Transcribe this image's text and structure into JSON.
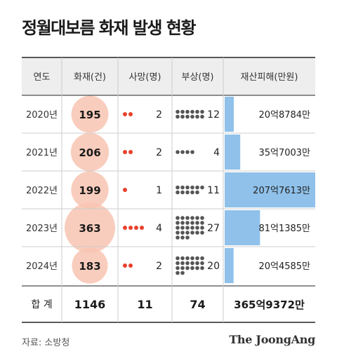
{
  "title": "정월대보름 화재 발생 현황",
  "source": "자료: 소방청",
  "brand": "The JoongAng",
  "colors": {
    "circle": "#f8c4b2",
    "dot_red": "#e8402c",
    "dot_gray": "#555555",
    "bar": "#8fc1ea",
    "header_bg": "#eeeeee",
    "line": "#222222"
  },
  "chart_data": {
    "type": "table",
    "columns": [
      "연도",
      "화재(건)",
      "사망(명)",
      "부상(명)",
      "재산피해(만원)"
    ],
    "rows": [
      {
        "year": "2020년",
        "fires": 195,
        "deaths": 2,
        "injuries": 12,
        "damage": 208784,
        "damage_label": "20억8784만"
      },
      {
        "year": "2021년",
        "fires": 206,
        "deaths": 2,
        "injuries": 4,
        "damage": 357003,
        "damage_label": "35억7003만"
      },
      {
        "year": "2022년",
        "fires": 199,
        "deaths": 1,
        "injuries": 11,
        "damage": 2077613,
        "damage_label": "207억7613만"
      },
      {
        "year": "2023년",
        "fires": 363,
        "deaths": 4,
        "injuries": 27,
        "damage": 811385,
        "damage_label": "81억1385만"
      },
      {
        "year": "2024년",
        "fires": 183,
        "deaths": 2,
        "injuries": 20,
        "damage": 204585,
        "damage_label": "20억4585만"
      }
    ],
    "total": {
      "label": "합 계",
      "fires": "1146",
      "deaths": "11",
      "injuries": "74",
      "damage_label": "365억9372만"
    }
  }
}
